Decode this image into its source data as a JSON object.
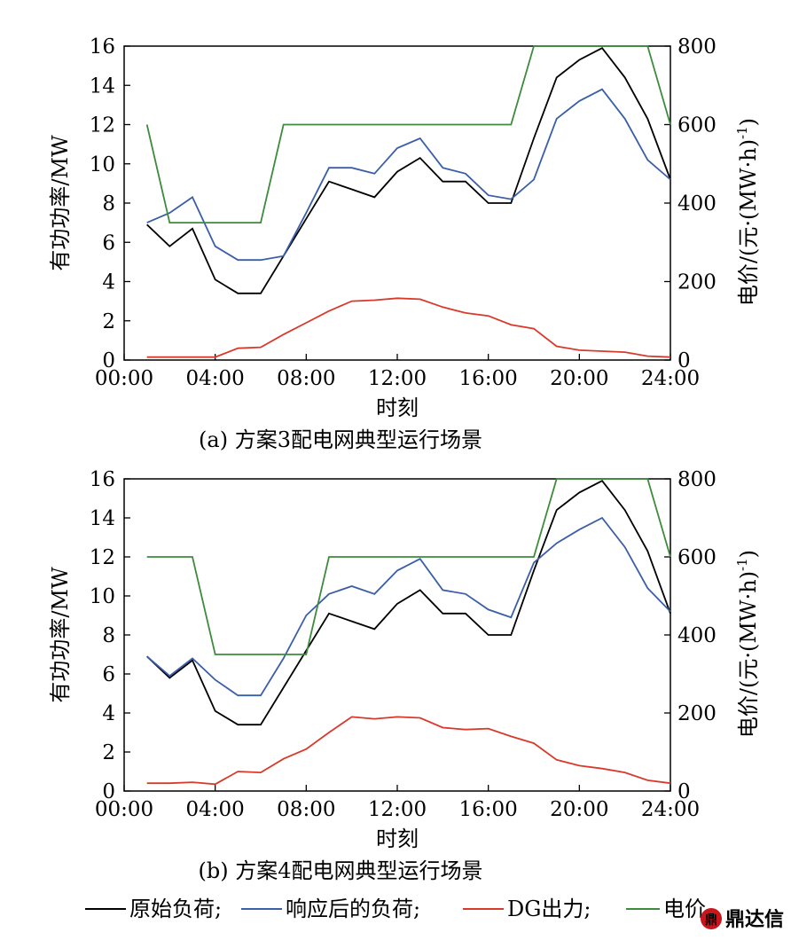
{
  "colors": {
    "原始负荷": "#000000",
    "响应后的负荷": "#3a5ea8",
    "DG出力": "#d9392a",
    "电价": "#3d8b3d"
  },
  "legend": {
    "entries": [
      "原始负荷;",
      "响应后的负荷;",
      "DG出力;",
      "电价"
    ]
  },
  "watermark": {
    "text": "鼎达信"
  },
  "chart_data": [
    {
      "type": "line",
      "caption": "(a) 方案3配电网典型运行场景",
      "xlabel": "时刻",
      "ylabel": "有功功率/MW",
      "y2label_main": "电价/(元·(MW·h)",
      "y2label_sup": "-1",
      "y2label_end": ")",
      "xticks": [
        "00:00",
        "04:00",
        "08:00",
        "12:00",
        "16:00",
        "20:00",
        "24:00"
      ],
      "yticks": [
        "0",
        "2",
        "4",
        "6",
        "8",
        "10",
        "12",
        "14",
        "16"
      ],
      "y2ticks": [
        "0",
        "200",
        "400",
        "600",
        "800"
      ],
      "xlim": [
        0,
        24
      ],
      "ylim": [
        0,
        16
      ],
      "y2lim": [
        0,
        800
      ],
      "x": [
        1,
        2,
        3,
        4,
        5,
        6,
        7,
        8,
        9,
        10,
        11,
        12,
        13,
        14,
        15,
        16,
        17,
        18,
        19,
        20,
        21,
        22,
        23,
        24
      ],
      "series": [
        {
          "name": "原始负荷",
          "axis": "left",
          "values": [
            6.9,
            5.8,
            6.7,
            4.1,
            3.4,
            3.4,
            5.3,
            7.2,
            9.1,
            8.7,
            8.3,
            9.6,
            10.3,
            9.1,
            9.1,
            8.0,
            8.0,
            11.3,
            14.4,
            15.3,
            15.9,
            14.4,
            12.3,
            9.2
          ]
        },
        {
          "name": "响应后的负荷",
          "axis": "left",
          "values": [
            7.0,
            7.5,
            8.3,
            5.8,
            5.1,
            5.1,
            5.3,
            7.5,
            9.8,
            9.8,
            9.5,
            10.8,
            11.3,
            9.8,
            9.5,
            8.4,
            8.2,
            9.2,
            12.3,
            13.2,
            13.8,
            12.3,
            10.2,
            9.2
          ]
        },
        {
          "name": "DG出力",
          "axis": "left",
          "values": [
            0.15,
            0.15,
            0.15,
            0.15,
            0.6,
            0.65,
            1.3,
            1.9,
            2.5,
            3.0,
            3.05,
            3.15,
            3.1,
            2.7,
            2.4,
            2.25,
            1.8,
            1.6,
            0.7,
            0.5,
            0.45,
            0.4,
            0.2,
            0.15
          ]
        },
        {
          "name": "电价",
          "axis": "right",
          "values": [
            600,
            350,
            350,
            350,
            350,
            350,
            600,
            600,
            600,
            600,
            600,
            600,
            600,
            600,
            600,
            600,
            600,
            800,
            800,
            800,
            800,
            800,
            800,
            600
          ]
        }
      ]
    },
    {
      "type": "line",
      "caption": "(b) 方案4配电网典型运行场景",
      "xlabel": "时刻",
      "ylabel": "有功功率/MW",
      "y2label_main": "电价/(元·(MW·h)",
      "y2label_sup": "-1",
      "y2label_end": ")",
      "xticks": [
        "00:00",
        "04:00",
        "08:00",
        "12:00",
        "16:00",
        "20:00",
        "24:00"
      ],
      "yticks": [
        "0",
        "2",
        "4",
        "6",
        "8",
        "10",
        "12",
        "14",
        "16"
      ],
      "y2ticks": [
        "0",
        "200",
        "400",
        "600",
        "800"
      ],
      "xlim": [
        0,
        24
      ],
      "ylim": [
        0,
        16
      ],
      "y2lim": [
        0,
        800
      ],
      "x": [
        1,
        2,
        3,
        4,
        5,
        6,
        7,
        8,
        9,
        10,
        11,
        12,
        13,
        14,
        15,
        16,
        17,
        18,
        19,
        20,
        21,
        22,
        23,
        24
      ],
      "series": [
        {
          "name": "原始负荷",
          "axis": "left",
          "values": [
            6.9,
            5.8,
            6.7,
            4.1,
            3.4,
            3.4,
            5.3,
            7.2,
            9.1,
            8.7,
            8.3,
            9.6,
            10.3,
            9.1,
            9.1,
            8.0,
            8.0,
            11.3,
            14.4,
            15.3,
            15.9,
            14.4,
            12.3,
            9.1
          ]
        },
        {
          "name": "响应后的负荷",
          "axis": "left",
          "values": [
            6.9,
            5.9,
            6.8,
            5.7,
            4.9,
            4.9,
            6.8,
            9.0,
            10.1,
            10.5,
            10.1,
            11.3,
            11.9,
            10.3,
            10.1,
            9.3,
            8.9,
            11.7,
            12.7,
            13.4,
            14.0,
            12.5,
            10.4,
            9.2
          ]
        },
        {
          "name": "DG出力",
          "axis": "left",
          "values": [
            0.4,
            0.4,
            0.45,
            0.35,
            1.0,
            0.95,
            1.65,
            2.15,
            3.0,
            3.8,
            3.7,
            3.8,
            3.75,
            3.25,
            3.15,
            3.2,
            2.8,
            2.45,
            1.6,
            1.3,
            1.15,
            0.95,
            0.55,
            0.4
          ]
        },
        {
          "name": "电价",
          "axis": "right",
          "values": [
            600,
            600,
            600,
            350,
            350,
            350,
            350,
            350,
            600,
            600,
            600,
            600,
            600,
            600,
            600,
            600,
            600,
            600,
            800,
            800,
            800,
            800,
            800,
            600
          ]
        }
      ]
    }
  ]
}
